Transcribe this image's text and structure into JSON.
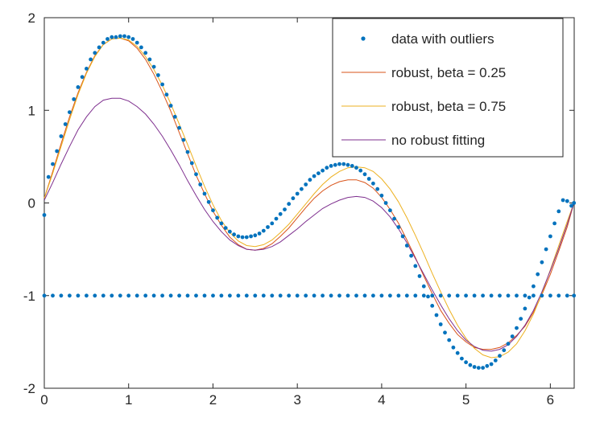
{
  "chart_data": {
    "type": "line",
    "xlim": [
      0,
      6.283
    ],
    "ylim": [
      -2,
      2
    ],
    "x_ticks": [
      0,
      1,
      2,
      3,
      4,
      5,
      6
    ],
    "y_ticks": [
      -2,
      -1,
      0,
      1,
      2
    ],
    "x_tick_labels": [
      "0",
      "1",
      "2",
      "3",
      "4",
      "5",
      "6"
    ],
    "y_tick_labels": [
      "-2",
      "-1",
      "0",
      "1",
      "2"
    ],
    "grid": false,
    "legend_position": "top-right",
    "series": [
      {
        "name": "data with outliers",
        "kind": "scatter",
        "color": "#0072bd",
        "x": [
          0.0,
          0.05,
          0.1,
          0.15,
          0.2,
          0.25,
          0.3,
          0.35,
          0.4,
          0.45,
          0.5,
          0.55,
          0.6,
          0.65,
          0.7,
          0.75,
          0.8,
          0.85,
          0.9,
          0.95,
          1.0,
          1.05,
          1.1,
          1.15,
          1.2,
          1.25,
          1.3,
          1.35,
          1.4,
          1.45,
          1.5,
          1.55,
          1.6,
          1.65,
          1.7,
          1.75,
          1.8,
          1.85,
          1.9,
          1.95,
          2.0,
          2.05,
          2.1,
          2.15,
          2.2,
          2.25,
          2.3,
          2.35,
          2.4,
          2.45,
          2.5,
          2.55,
          2.6,
          2.65,
          2.7,
          2.75,
          2.8,
          2.85,
          2.9,
          2.95,
          3.0,
          3.05,
          3.1,
          3.15,
          3.2,
          3.25,
          3.3,
          3.35,
          3.4,
          3.45,
          3.5,
          3.55,
          3.6,
          3.65,
          3.7,
          3.75,
          3.8,
          3.85,
          3.9,
          3.95,
          4.0,
          4.05,
          4.1,
          4.15,
          4.2,
          4.25,
          4.3,
          4.35,
          4.4,
          4.45,
          4.5,
          4.55,
          4.6,
          4.65,
          4.7,
          4.75,
          4.8,
          4.85,
          4.9,
          4.95,
          5.0,
          5.05,
          5.1,
          5.15,
          5.2,
          5.25,
          5.3,
          5.35,
          5.4,
          5.45,
          5.5,
          5.55,
          5.6,
          5.65,
          5.7,
          5.75,
          5.8,
          5.85,
          5.9,
          5.95,
          6.0,
          6.05,
          6.1,
          6.15,
          6.2,
          6.25,
          6.28,
          0.0,
          0.1,
          0.2,
          0.3,
          0.4,
          0.5,
          0.6,
          0.7,
          0.8,
          0.9,
          1.0,
          1.1,
          1.2,
          1.3,
          1.4,
          1.5,
          1.6,
          1.7,
          1.8,
          1.9,
          2.0,
          2.1,
          2.2,
          2.3,
          2.4,
          2.5,
          2.6,
          2.7,
          2.8,
          2.9,
          3.0,
          3.1,
          3.2,
          3.3,
          3.4,
          3.5,
          3.6,
          3.7,
          3.8,
          3.9,
          4.0,
          4.1,
          4.2,
          4.3,
          4.4,
          4.5,
          4.6,
          4.7,
          4.8,
          4.9,
          5.0,
          5.1,
          5.2,
          5.3,
          5.4,
          5.5,
          5.6,
          5.7,
          5.8,
          5.9,
          6.0,
          6.1,
          6.2,
          6.28
        ],
        "y": [
          -0.13,
          0.28,
          0.42,
          0.56,
          0.72,
          0.85,
          0.98,
          1.12,
          1.25,
          1.36,
          1.45,
          1.55,
          1.62,
          1.68,
          1.73,
          1.77,
          1.79,
          1.79,
          1.8,
          1.8,
          1.79,
          1.77,
          1.73,
          1.68,
          1.62,
          1.55,
          1.47,
          1.38,
          1.28,
          1.17,
          1.05,
          0.93,
          0.81,
          0.68,
          0.55,
          0.43,
          0.31,
          0.2,
          0.1,
          0.01,
          -0.08,
          -0.16,
          -0.22,
          -0.27,
          -0.31,
          -0.34,
          -0.36,
          -0.37,
          -0.37,
          -0.36,
          -0.35,
          -0.33,
          -0.3,
          -0.26,
          -0.22,
          -0.17,
          -0.12,
          -0.07,
          -0.01,
          0.05,
          0.1,
          0.15,
          0.2,
          0.25,
          0.29,
          0.32,
          0.35,
          0.38,
          0.4,
          0.41,
          0.42,
          0.42,
          0.41,
          0.4,
          0.38,
          0.35,
          0.31,
          0.26,
          0.21,
          0.15,
          0.08,
          0.0,
          -0.08,
          -0.17,
          -0.26,
          -0.36,
          -0.46,
          -0.57,
          -0.68,
          -0.79,
          -0.9,
          -1.01,
          -1.11,
          -1.21,
          -1.31,
          -1.4,
          -1.48,
          -1.56,
          -1.62,
          -1.68,
          -1.72,
          -1.75,
          -1.77,
          -1.78,
          -1.78,
          -1.76,
          -1.74,
          -1.7,
          -1.65,
          -1.59,
          -1.52,
          -1.44,
          -1.35,
          -1.25,
          -1.14,
          -1.02,
          -0.9,
          -0.77,
          -0.64,
          -0.5,
          -0.36,
          -0.22,
          -0.09,
          0.03,
          0.02,
          -0.03,
          0.0,
          -1,
          -1,
          -1,
          -1,
          -1,
          -1,
          -1,
          -1,
          -1,
          -1,
          -1,
          -1,
          -1,
          -1,
          -1,
          -1,
          -1,
          -1,
          -1,
          -1,
          -1,
          -1,
          -1,
          -1,
          -1,
          -1,
          -1,
          -1,
          -1,
          -1,
          -1,
          -1,
          -1,
          -1,
          -1,
          -1,
          -1,
          -1,
          -1,
          -1,
          -1,
          -1,
          -1,
          -1,
          -1,
          -1,
          -1,
          -1,
          -1,
          -1,
          -1,
          -1,
          -1,
          -1,
          -1,
          -1,
          -1,
          -1,
          -1,
          -1,
          -1,
          -1,
          -1,
          -1
        ]
      },
      {
        "name": "robust, beta = 0.25",
        "kind": "line",
        "color": "#d95319",
        "x": [
          0.0,
          0.1,
          0.2,
          0.3,
          0.4,
          0.5,
          0.6,
          0.7,
          0.8,
          0.9,
          1.0,
          1.1,
          1.2,
          1.3,
          1.4,
          1.5,
          1.6,
          1.7,
          1.8,
          1.9,
          2.0,
          2.1,
          2.2,
          2.3,
          2.4,
          2.5,
          2.6,
          2.7,
          2.8,
          2.9,
          3.0,
          3.1,
          3.2,
          3.3,
          3.4,
          3.5,
          3.6,
          3.7,
          3.8,
          3.9,
          4.0,
          4.1,
          4.2,
          4.3,
          4.4,
          4.5,
          4.6,
          4.7,
          4.8,
          4.9,
          5.0,
          5.1,
          5.2,
          5.3,
          5.4,
          5.5,
          5.6,
          5.7,
          5.8,
          5.9,
          6.0,
          6.1,
          6.2,
          6.28
        ],
        "y": [
          0.05,
          0.34,
          0.64,
          0.93,
          1.19,
          1.41,
          1.59,
          1.71,
          1.77,
          1.78,
          1.75,
          1.67,
          1.55,
          1.39,
          1.2,
          0.99,
          0.76,
          0.53,
          0.3,
          0.1,
          -0.09,
          -0.24,
          -0.37,
          -0.45,
          -0.5,
          -0.51,
          -0.49,
          -0.44,
          -0.36,
          -0.27,
          -0.16,
          -0.05,
          0.05,
          0.13,
          0.19,
          0.23,
          0.25,
          0.25,
          0.22,
          0.16,
          0.06,
          -0.07,
          -0.22,
          -0.4,
          -0.59,
          -0.79,
          -0.98,
          -1.16,
          -1.3,
          -1.42,
          -1.5,
          -1.56,
          -1.58,
          -1.58,
          -1.56,
          -1.51,
          -1.43,
          -1.33,
          -1.18,
          -0.99,
          -0.77,
          -0.52,
          -0.26,
          0.0
        ]
      },
      {
        "name": "robust, beta = 0.75",
        "kind": "line",
        "color": "#edb120",
        "x": [
          0.0,
          0.1,
          0.2,
          0.3,
          0.4,
          0.5,
          0.6,
          0.7,
          0.8,
          0.9,
          1.0,
          1.1,
          1.2,
          1.3,
          1.4,
          1.5,
          1.6,
          1.7,
          1.8,
          1.9,
          2.0,
          2.1,
          2.2,
          2.3,
          2.4,
          2.5,
          2.6,
          2.7,
          2.8,
          2.9,
          3.0,
          3.1,
          3.2,
          3.3,
          3.4,
          3.5,
          3.6,
          3.7,
          3.8,
          3.9,
          4.0,
          4.1,
          4.2,
          4.3,
          4.4,
          4.5,
          4.6,
          4.7,
          4.8,
          4.9,
          5.0,
          5.1,
          5.2,
          5.3,
          5.4,
          5.5,
          5.6,
          5.7,
          5.8,
          5.9,
          6.0,
          6.1,
          6.2,
          6.28
        ],
        "y": [
          0.05,
          0.32,
          0.61,
          0.9,
          1.17,
          1.4,
          1.58,
          1.71,
          1.77,
          1.78,
          1.76,
          1.69,
          1.58,
          1.44,
          1.27,
          1.07,
          0.85,
          0.63,
          0.4,
          0.18,
          -0.02,
          -0.19,
          -0.32,
          -0.41,
          -0.46,
          -0.47,
          -0.45,
          -0.4,
          -0.32,
          -0.23,
          -0.12,
          -0.01,
          0.1,
          0.2,
          0.28,
          0.34,
          0.38,
          0.39,
          0.38,
          0.34,
          0.26,
          0.15,
          0.01,
          -0.16,
          -0.35,
          -0.55,
          -0.76,
          -0.96,
          -1.15,
          -1.32,
          -1.46,
          -1.57,
          -1.64,
          -1.67,
          -1.66,
          -1.61,
          -1.52,
          -1.38,
          -1.2,
          -0.98,
          -0.72,
          -0.46,
          -0.2,
          0.0
        ]
      },
      {
        "name": "no robust fitting",
        "kind": "line",
        "color": "#7e2f8e",
        "x": [
          0.0,
          0.1,
          0.2,
          0.3,
          0.4,
          0.5,
          0.6,
          0.7,
          0.8,
          0.9,
          1.0,
          1.1,
          1.2,
          1.3,
          1.4,
          1.5,
          1.6,
          1.7,
          1.8,
          1.9,
          2.0,
          2.1,
          2.2,
          2.3,
          2.4,
          2.5,
          2.6,
          2.7,
          2.8,
          2.9,
          3.0,
          3.1,
          3.2,
          3.3,
          3.4,
          3.5,
          3.6,
          3.7,
          3.8,
          3.9,
          4.0,
          4.1,
          4.2,
          4.3,
          4.4,
          4.5,
          4.6,
          4.7,
          4.8,
          4.9,
          5.0,
          5.1,
          5.2,
          5.3,
          5.4,
          5.5,
          5.6,
          5.7,
          5.8,
          5.9,
          6.0,
          6.1,
          6.2,
          6.28
        ],
        "y": [
          0.03,
          0.22,
          0.42,
          0.61,
          0.79,
          0.93,
          1.04,
          1.11,
          1.13,
          1.13,
          1.1,
          1.04,
          0.96,
          0.85,
          0.72,
          0.57,
          0.41,
          0.24,
          0.08,
          -0.07,
          -0.2,
          -0.31,
          -0.4,
          -0.46,
          -0.5,
          -0.51,
          -0.5,
          -0.47,
          -0.42,
          -0.35,
          -0.28,
          -0.2,
          -0.13,
          -0.06,
          -0.01,
          0.03,
          0.06,
          0.07,
          0.06,
          0.02,
          -0.05,
          -0.15,
          -0.28,
          -0.43,
          -0.6,
          -0.77,
          -0.94,
          -1.1,
          -1.25,
          -1.38,
          -1.48,
          -1.55,
          -1.59,
          -1.6,
          -1.58,
          -1.53,
          -1.44,
          -1.32,
          -1.16,
          -0.96,
          -0.73,
          -0.49,
          -0.23,
          0.0
        ]
      }
    ],
    "title": "",
    "xlabel": "",
    "ylabel": ""
  }
}
